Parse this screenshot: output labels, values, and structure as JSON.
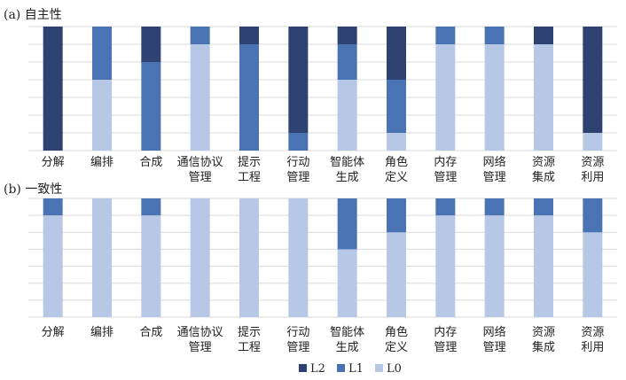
{
  "colors": {
    "L2": "#2E4272",
    "L1": "#4A73B4",
    "L0": "#B7C7E6",
    "grid": "#D9D9D9"
  },
  "legend": [
    {
      "key": "L2",
      "label": "L2"
    },
    {
      "key": "L1",
      "label": "L1"
    },
    {
      "key": "L0",
      "label": "L0"
    }
  ],
  "chart_data": [
    {
      "type": "bar",
      "stacked": true,
      "title": "(a) 自主性",
      "categories": [
        [
          "分解"
        ],
        [
          "编排"
        ],
        [
          "合成"
        ],
        [
          "通信协议",
          "管理"
        ],
        [
          "提示",
          "工程"
        ],
        [
          "行动",
          "管理"
        ],
        [
          "智能体",
          "生成"
        ],
        [
          "角色",
          "定义"
        ],
        [
          "内存",
          "管理"
        ],
        [
          "网络",
          "管理"
        ],
        [
          "资源",
          "集成"
        ],
        [
          "资源",
          "利用"
        ]
      ],
      "series": [
        {
          "name": "L0",
          "values": [
            0,
            4,
            0,
            6,
            0,
            0,
            4,
            1,
            6,
            6,
            6,
            1
          ]
        },
        {
          "name": "L1",
          "values": [
            0,
            3,
            5,
            1,
            6,
            1,
            2,
            3,
            1,
            1,
            0,
            0
          ]
        },
        {
          "name": "L2",
          "values": [
            7,
            0,
            2,
            0,
            1,
            6,
            1,
            3,
            0,
            0,
            1,
            6
          ]
        }
      ],
      "grid": true,
      "legend": "bottom"
    },
    {
      "type": "bar",
      "stacked": true,
      "title": "(b) 一致性",
      "categories": [
        [
          "分解"
        ],
        [
          "编排"
        ],
        [
          "合成"
        ],
        [
          "通信协议",
          "管理"
        ],
        [
          "提示",
          "工程"
        ],
        [
          "行动",
          "管理"
        ],
        [
          "智能体",
          "生成"
        ],
        [
          "角色",
          "定义"
        ],
        [
          "内存",
          "管理"
        ],
        [
          "网络",
          "管理"
        ],
        [
          "资源",
          "集成"
        ],
        [
          "资源",
          "利用"
        ]
      ],
      "series": [
        {
          "name": "L0",
          "values": [
            6,
            7,
            6,
            7,
            7,
            7,
            4,
            5,
            6,
            6,
            6,
            5
          ]
        },
        {
          "name": "L1",
          "values": [
            1,
            0,
            1,
            0,
            0,
            0,
            3,
            2,
            1,
            1,
            1,
            2
          ]
        },
        {
          "name": "L2",
          "values": [
            0,
            0,
            0,
            0,
            0,
            0,
            0,
            0,
            0,
            0,
            0,
            0
          ]
        }
      ],
      "grid": true,
      "legend": "bottom"
    }
  ]
}
